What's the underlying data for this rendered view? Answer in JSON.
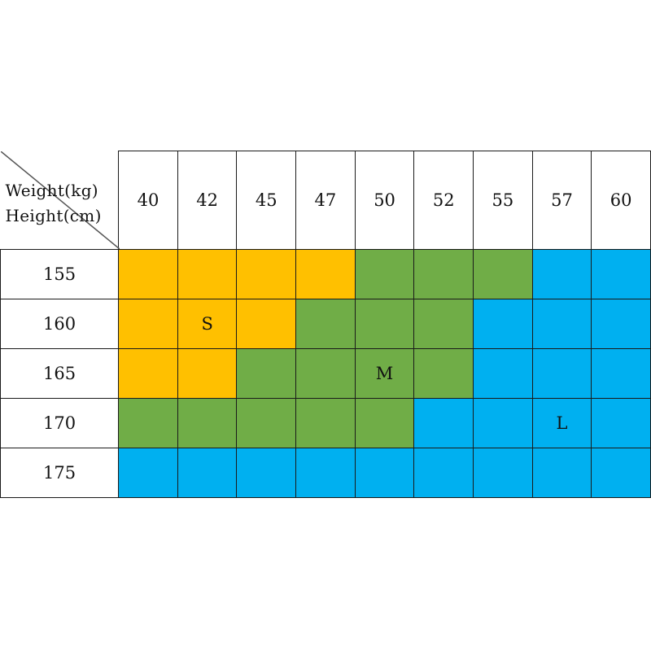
{
  "table": {
    "corner": {
      "weight_label": "Weight(kg)",
      "height_label": "Height(cm)"
    },
    "weights": [
      "40",
      "42",
      "45",
      "47",
      "50",
      "52",
      "55",
      "57",
      "60"
    ],
    "rows": [
      {
        "height": "155",
        "sizes": [
          "S",
          "S",
          "S",
          "S",
          "M",
          "M",
          "M",
          "L",
          "L"
        ],
        "labels": [
          "",
          "",
          "",
          "",
          "",
          "",
          "",
          "",
          ""
        ]
      },
      {
        "height": "160",
        "sizes": [
          "S",
          "S",
          "S",
          "M",
          "M",
          "M",
          "L",
          "L",
          "L"
        ],
        "labels": [
          "",
          "S",
          "",
          "",
          "",
          "",
          "",
          "",
          ""
        ]
      },
      {
        "height": "165",
        "sizes": [
          "S",
          "S",
          "M",
          "M",
          "M",
          "M",
          "L",
          "L",
          "L"
        ],
        "labels": [
          "",
          "",
          "",
          "",
          "M",
          "",
          "",
          "",
          ""
        ]
      },
      {
        "height": "170",
        "sizes": [
          "M",
          "M",
          "M",
          "M",
          "M",
          "L",
          "L",
          "L",
          "L"
        ],
        "labels": [
          "",
          "",
          "",
          "",
          "",
          "",
          "",
          "L",
          ""
        ]
      },
      {
        "height": "175",
        "sizes": [
          "L",
          "L",
          "L",
          "L",
          "L",
          "L",
          "L",
          "L",
          "L"
        ],
        "labels": [
          "",
          "",
          "",
          "",
          "",
          "",
          "",
          "",
          ""
        ]
      }
    ],
    "colors": {
      "S": "#FFC000",
      "M": "#70AD47",
      "L": "#00B0F0"
    }
  }
}
